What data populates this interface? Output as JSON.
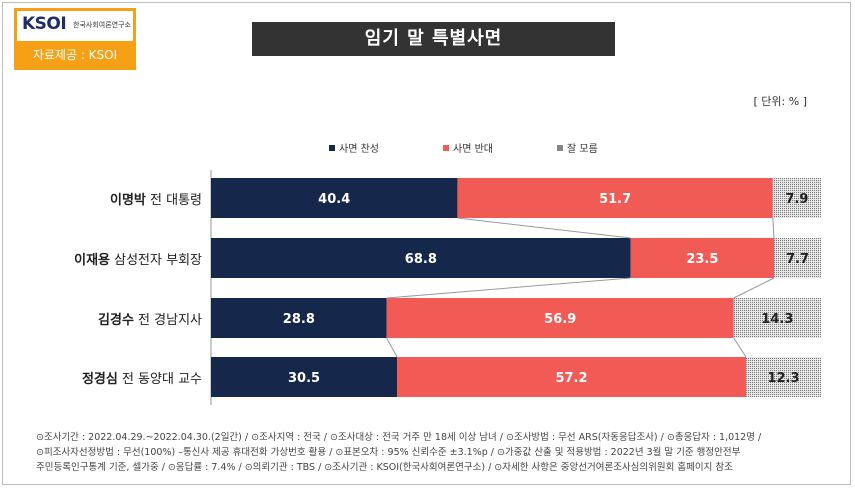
{
  "logo": {
    "mark": "KSOI",
    "org": "한국사회여론연구소",
    "source": "자료제공 : KSOI"
  },
  "title": "임기 말 특별사면",
  "unit": "[ 단위: % ]",
  "chart_data": {
    "type": "bar",
    "orientation": "horizontal",
    "stacked": "100%",
    "title": "임기 말 특별사면",
    "categories": [
      {
        "name": "이명박",
        "desc": "전 대통령"
      },
      {
        "name": "이재용",
        "desc": "삼성전자 부회장"
      },
      {
        "name": "김경수",
        "desc": "전 경남지사"
      },
      {
        "name": "정경심",
        "desc": "전 동양대 교수"
      }
    ],
    "series": [
      {
        "name": "사면 찬성",
        "color": "#15274a",
        "values": [
          40.4,
          68.8,
          28.8,
          30.5
        ]
      },
      {
        "name": "사면 반대",
        "color": "#f15a55",
        "values": [
          51.7,
          23.5,
          56.9,
          57.2
        ]
      },
      {
        "name": "잘 모름",
        "color": "#d9d9d9",
        "pattern": "dots",
        "values": [
          7.9,
          7.7,
          14.3,
          12.3
        ]
      }
    ],
    "legend_position": "top",
    "grid": false
  },
  "footer": {
    "line1": "⊙조사기간 : 2022.04.29.~2022.04.30.(2일간)  / ⊙조사지역 : 전국 / ⊙조사대상 : 전국 거주 만 18세 이상 남녀 / ⊙조사방법 : 무선 ARS(자동응답조사) / ⊙총응답자 : 1,012명 /",
    "line2": "⊙피조사자선정방법 : 무선(100%) –통신사 제공 휴대전화 가상번호 활용 / ⊙표본오차 : 95% 신뢰수준 ±3.1%p / ⊙가중값 산출 및 적용방법 : 2022년 3월 말 기준 행정안전부",
    "line3": "주민등록인구통계 기준, 셀가중 / ⊙응답률 : 7.4% / ⊙의뢰기관 : TBS / ⊙조사기관 : KSOI(한국사회여론연구소) / ⊙자세한 사항은 중앙선거여론조사심의위원회 홈페이지 참조"
  }
}
